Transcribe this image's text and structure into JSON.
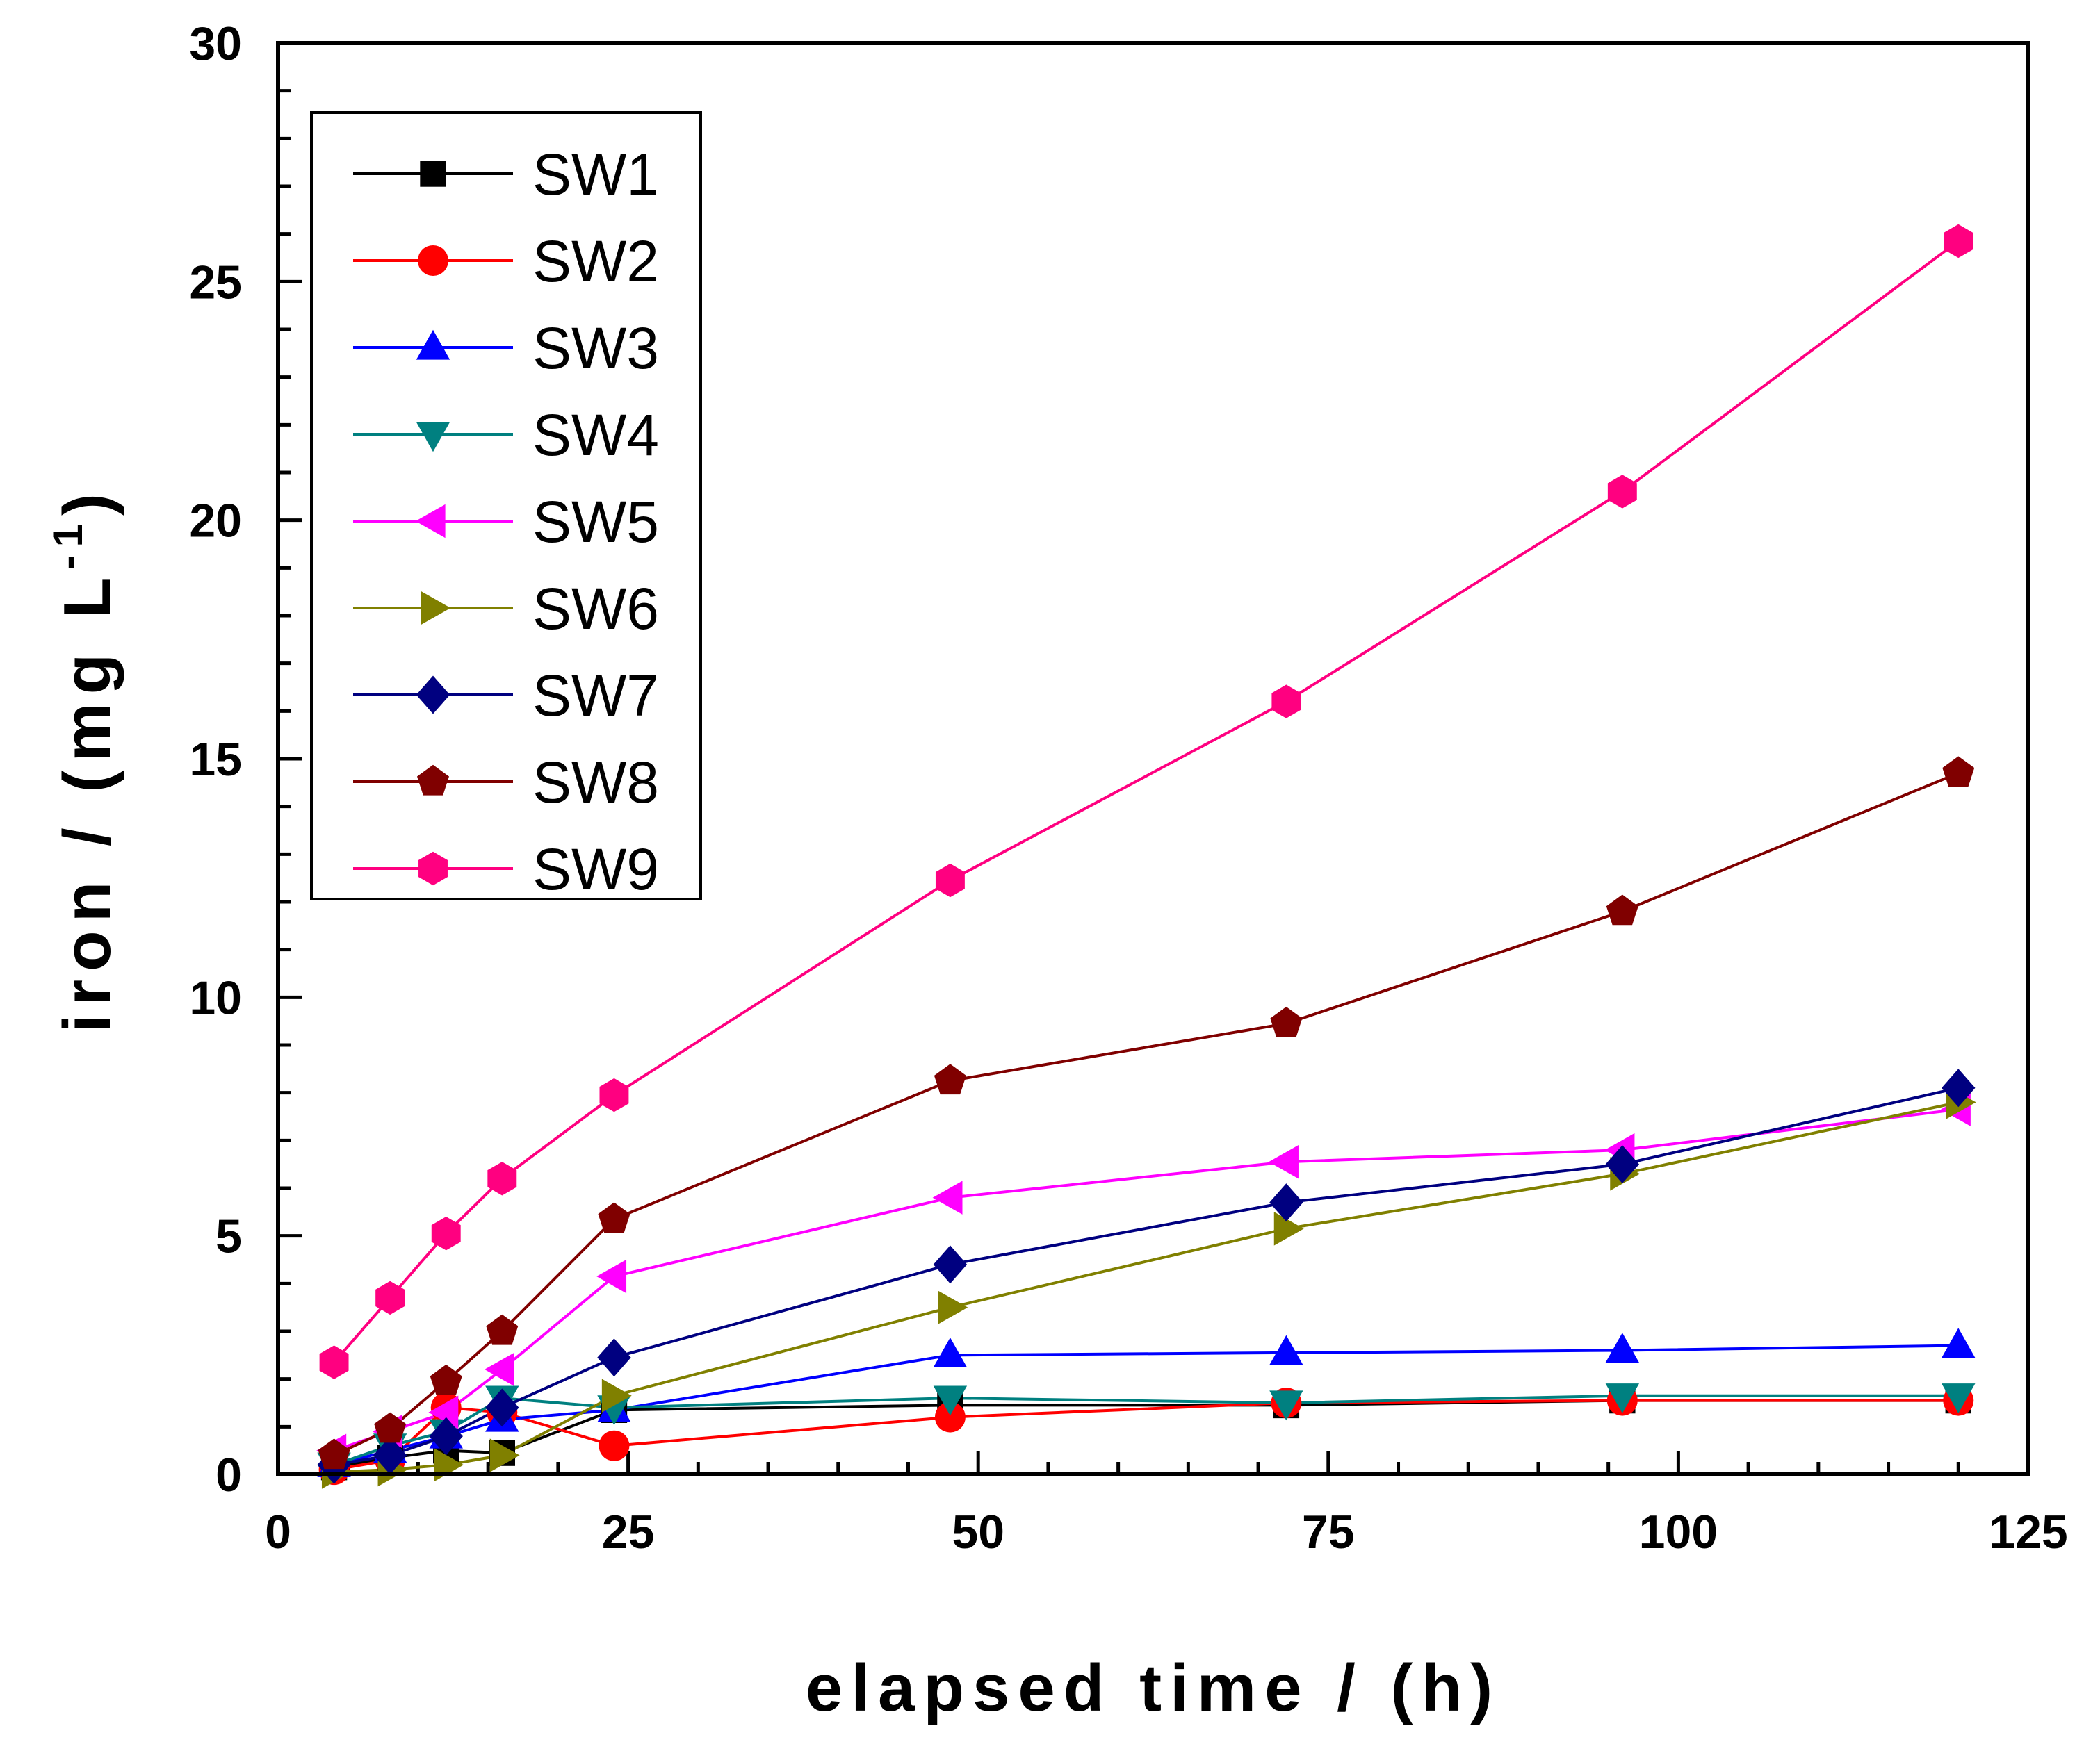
{
  "chart_data": {
    "type": "line",
    "title": "",
    "xlabel": "elapsed time / (h)",
    "ylabel_main": "iron / (mg L",
    "ylabel_sup": "-1",
    "ylabel_close": ")",
    "xlim": [
      0,
      125
    ],
    "ylim": [
      0,
      30
    ],
    "xticks": [
      0,
      25,
      50,
      75,
      100,
      125
    ],
    "yticks": [
      0,
      5,
      10,
      15,
      20,
      25,
      30
    ],
    "xtick_labels": [
      "0",
      "25",
      "50",
      "75",
      "100",
      "125"
    ],
    "ytick_labels": [
      "0",
      "5",
      "10",
      "15",
      "20",
      "25",
      "30"
    ],
    "grid": false,
    "legend_position": "top-left",
    "x": [
      4,
      8,
      12,
      16,
      24,
      48,
      72,
      96,
      120
    ],
    "series": [
      {
        "name": "SW1",
        "color": "#000000",
        "marker": "square",
        "values": [
          0.15,
          0.35,
          0.5,
          0.45,
          1.35,
          1.45,
          1.45,
          1.55,
          1.55
        ]
      },
      {
        "name": "SW2",
        "color": "#ff0000",
        "marker": "circle",
        "values": [
          0.1,
          0.3,
          1.4,
          1.3,
          0.6,
          1.2,
          1.5,
          1.55,
          1.55
        ]
      },
      {
        "name": "SW3",
        "color": "#0000ff",
        "marker": "triangle-up",
        "values": [
          0.2,
          0.5,
          0.8,
          1.15,
          1.35,
          2.5,
          2.55,
          2.6,
          2.7
        ]
      },
      {
        "name": "SW4",
        "color": "#008080",
        "marker": "triangle-down",
        "values": [
          0.2,
          0.6,
          0.9,
          1.6,
          1.4,
          1.6,
          1.5,
          1.65,
          1.65
        ]
      },
      {
        "name": "SW5",
        "color": "#ff00ff",
        "marker": "triangle-left",
        "values": [
          0.5,
          0.9,
          1.3,
          2.2,
          4.15,
          5.8,
          6.55,
          6.8,
          7.65
        ]
      },
      {
        "name": "SW6",
        "color": "#808000",
        "marker": "triangle-right",
        "values": [
          0.05,
          0.1,
          0.2,
          0.4,
          1.65,
          3.5,
          5.15,
          6.3,
          7.8
        ]
      },
      {
        "name": "SW7",
        "color": "#000080",
        "marker": "diamond",
        "values": [
          0.2,
          0.4,
          0.8,
          1.4,
          2.45,
          4.4,
          5.7,
          6.5,
          8.1
        ]
      },
      {
        "name": "SW8",
        "color": "#800000",
        "marker": "pentagon",
        "values": [
          0.4,
          0.95,
          1.95,
          3.0,
          5.35,
          8.25,
          9.45,
          11.8,
          14.7
        ]
      },
      {
        "name": "SW9",
        "color": "#ff0080",
        "marker": "hexagon",
        "values": [
          2.35,
          3.7,
          5.05,
          6.2,
          7.95,
          12.45,
          16.2,
          20.6,
          25.85
        ]
      }
    ]
  }
}
